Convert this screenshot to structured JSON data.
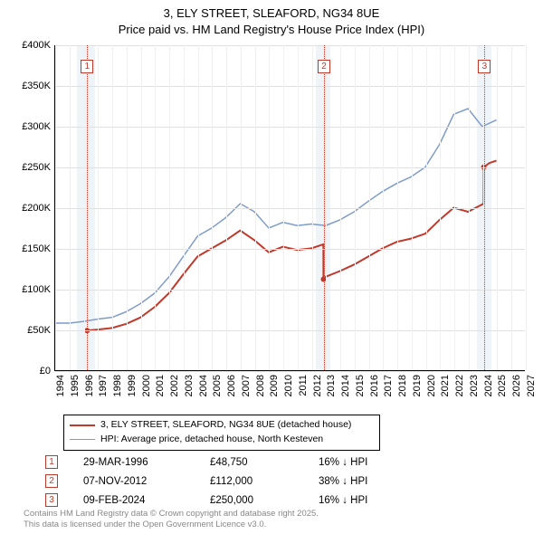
{
  "title": {
    "line1": "3, ELY STREET, SLEAFORD, NG34 8UE",
    "line2": "Price paid vs. HM Land Registry's House Price Index (HPI)"
  },
  "chart": {
    "type": "line",
    "x_domain": [
      1994,
      2027
    ],
    "y_domain": [
      0,
      400000
    ],
    "y_ticks": [
      0,
      50000,
      100000,
      150000,
      200000,
      250000,
      300000,
      350000,
      400000
    ],
    "y_tick_labels": [
      "£0",
      "£50K",
      "£100K",
      "£150K",
      "£200K",
      "£250K",
      "£300K",
      "£350K",
      "£400K"
    ],
    "x_ticks": [
      1994,
      1995,
      1996,
      1997,
      1998,
      1999,
      2000,
      2001,
      2002,
      2003,
      2004,
      2005,
      2006,
      2007,
      2008,
      2009,
      2010,
      2011,
      2012,
      2013,
      2014,
      2015,
      2016,
      2017,
      2018,
      2019,
      2020,
      2021,
      2022,
      2023,
      2024,
      2025,
      2026,
      2027
    ],
    "grid_h": true,
    "grid_v": true,
    "background_color": "#ffffff",
    "grid_color": "#e0e0e0",
    "shade_bands": [
      {
        "from": 1995.5,
        "to": 1996.8,
        "color": "#e8eff7"
      },
      {
        "from": 2012.3,
        "to": 2013.3,
        "color": "#e8eff7"
      },
      {
        "from": 2023.6,
        "to": 2024.6,
        "color": "#e8eff7"
      }
    ],
    "sale_lines": [
      {
        "x": 1996.24,
        "label": "1"
      },
      {
        "x": 2012.85,
        "label": "2"
      },
      {
        "x": 2024.11,
        "label": "3"
      }
    ],
    "series": [
      {
        "name": "price_paid",
        "label": "3, ELY STREET, SLEAFORD, NG34 8UE (detached house)",
        "color": "#c0392b",
        "width": 2,
        "points": [
          [
            1996.24,
            48750
          ],
          [
            1997,
            50000
          ],
          [
            1998,
            52000
          ],
          [
            1999,
            57000
          ],
          [
            2000,
            65000
          ],
          [
            2001,
            78000
          ],
          [
            2002,
            95000
          ],
          [
            2003,
            118000
          ],
          [
            2004,
            140000
          ],
          [
            2005,
            150000
          ],
          [
            2006,
            160000
          ],
          [
            2007,
            172000
          ],
          [
            2008,
            160000
          ],
          [
            2009,
            145000
          ],
          [
            2010,
            152000
          ],
          [
            2011,
            148000
          ],
          [
            2012,
            150000
          ],
          [
            2012.84,
            155000
          ],
          [
            2012.85,
            112000
          ],
          [
            2013,
            115000
          ],
          [
            2014,
            122000
          ],
          [
            2015,
            130000
          ],
          [
            2016,
            140000
          ],
          [
            2017,
            150000
          ],
          [
            2018,
            158000
          ],
          [
            2019,
            162000
          ],
          [
            2020,
            168000
          ],
          [
            2021,
            185000
          ],
          [
            2022,
            200000
          ],
          [
            2023,
            195000
          ],
          [
            2024.1,
            205000
          ],
          [
            2024.11,
            250000
          ],
          [
            2024.5,
            255000
          ],
          [
            2025,
            258000
          ]
        ],
        "dots": [
          [
            1996.24,
            48750
          ],
          [
            2012.85,
            112000
          ],
          [
            2024.11,
            250000
          ]
        ]
      },
      {
        "name": "hpi",
        "label": "HPI: Average price, detached house, North Kesteven",
        "color": "#7f9cc9",
        "width": 1.5,
        "points": [
          [
            1994,
            58000
          ],
          [
            1995,
            58000
          ],
          [
            1996,
            60000
          ],
          [
            1997,
            63000
          ],
          [
            1998,
            65000
          ],
          [
            1999,
            72000
          ],
          [
            2000,
            82000
          ],
          [
            2001,
            95000
          ],
          [
            2002,
            115000
          ],
          [
            2003,
            140000
          ],
          [
            2004,
            165000
          ],
          [
            2005,
            175000
          ],
          [
            2006,
            188000
          ],
          [
            2007,
            205000
          ],
          [
            2008,
            195000
          ],
          [
            2009,
            175000
          ],
          [
            2010,
            182000
          ],
          [
            2011,
            178000
          ],
          [
            2012,
            180000
          ],
          [
            2013,
            178000
          ],
          [
            2014,
            185000
          ],
          [
            2015,
            195000
          ],
          [
            2016,
            208000
          ],
          [
            2017,
            220000
          ],
          [
            2018,
            230000
          ],
          [
            2019,
            238000
          ],
          [
            2020,
            250000
          ],
          [
            2021,
            278000
          ],
          [
            2022,
            315000
          ],
          [
            2023,
            322000
          ],
          [
            2024,
            300000
          ],
          [
            2025,
            308000
          ]
        ]
      }
    ]
  },
  "legend": {
    "items": [
      {
        "color": "#c0392b",
        "width": 2,
        "label": "3, ELY STREET, SLEAFORD, NG34 8UE (detached house)"
      },
      {
        "color": "#7f9cc9",
        "width": 1.5,
        "label": "HPI: Average price, detached house, North Kesteven"
      }
    ]
  },
  "sales_table": {
    "rows": [
      {
        "n": "1",
        "date": "29-MAR-1996",
        "price": "£48,750",
        "delta": "16% ↓ HPI"
      },
      {
        "n": "2",
        "date": "07-NOV-2012",
        "price": "£112,000",
        "delta": "38% ↓ HPI"
      },
      {
        "n": "3",
        "date": "09-FEB-2024",
        "price": "£250,000",
        "delta": "16% ↓ HPI"
      }
    ]
  },
  "footer": {
    "line1": "Contains HM Land Registry data © Crown copyright and database right 2025.",
    "line2": "This data is licensed under the Open Government Licence v3.0."
  }
}
